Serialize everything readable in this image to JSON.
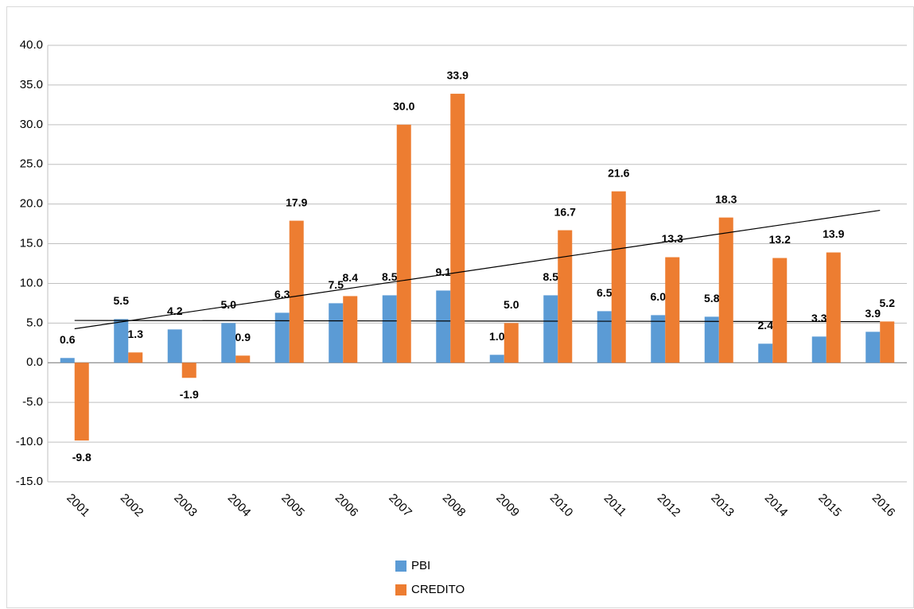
{
  "chart_data": {
    "type": "bar",
    "categories": [
      "2001",
      "2002",
      "2003",
      "2004",
      "2005",
      "2006",
      "2007",
      "2008",
      "2009",
      "2010",
      "2011",
      "2012",
      "2013",
      "2014",
      "2015",
      "2016"
    ],
    "series": [
      {
        "name": "PBI",
        "color": "#5b9bd5",
        "values": [
          0.6,
          5.5,
          4.2,
          5.0,
          6.3,
          7.5,
          8.5,
          9.1,
          1.0,
          8.5,
          6.5,
          6.0,
          5.8,
          2.4,
          3.3,
          3.9
        ],
        "value_labels": [
          "0.6",
          "5.5",
          "4.2",
          "5.0",
          "6.3",
          "7.5",
          "8.5",
          "9.1",
          "1.0",
          "8.5",
          "6.5",
          "6.0",
          "5.8",
          "2.4",
          "3.3",
          "3.9"
        ]
      },
      {
        "name": "CREDITO",
        "color": "#ed7d31",
        "values": [
          -9.8,
          1.3,
          -1.9,
          0.9,
          17.9,
          8.4,
          30.0,
          33.9,
          5.0,
          16.7,
          21.6,
          13.3,
          18.3,
          13.2,
          13.9,
          5.2
        ],
        "value_labels": [
          "-9.8",
          "1.3",
          "-1.9",
          "0.9",
          "17.9",
          "8.4",
          "30.0",
          "33.9",
          "5.0",
          "16.7",
          "21.6",
          "13.3",
          "18.3",
          "13.2",
          "13.9",
          "5.2"
        ]
      }
    ],
    "ylim": [
      -15,
      40
    ],
    "yticks": [
      {
        "value": -15,
        "label": "-15.0"
      },
      {
        "value": -10,
        "label": "-10.0"
      },
      {
        "value": -5,
        "label": "-5.0"
      },
      {
        "value": 0,
        "label": "0.0"
      },
      {
        "value": 5,
        "label": "5.0"
      },
      {
        "value": 10,
        "label": "10.0"
      },
      {
        "value": 15,
        "label": "15.0"
      },
      {
        "value": 20,
        "label": "20.0"
      },
      {
        "value": 25,
        "label": "25.0"
      },
      {
        "value": 30,
        "label": "30.0"
      },
      {
        "value": 35,
        "label": "35.0"
      },
      {
        "value": 40,
        "label": "40.0"
      }
    ],
    "grid": true,
    "trendline": true,
    "legend": "bottom"
  }
}
